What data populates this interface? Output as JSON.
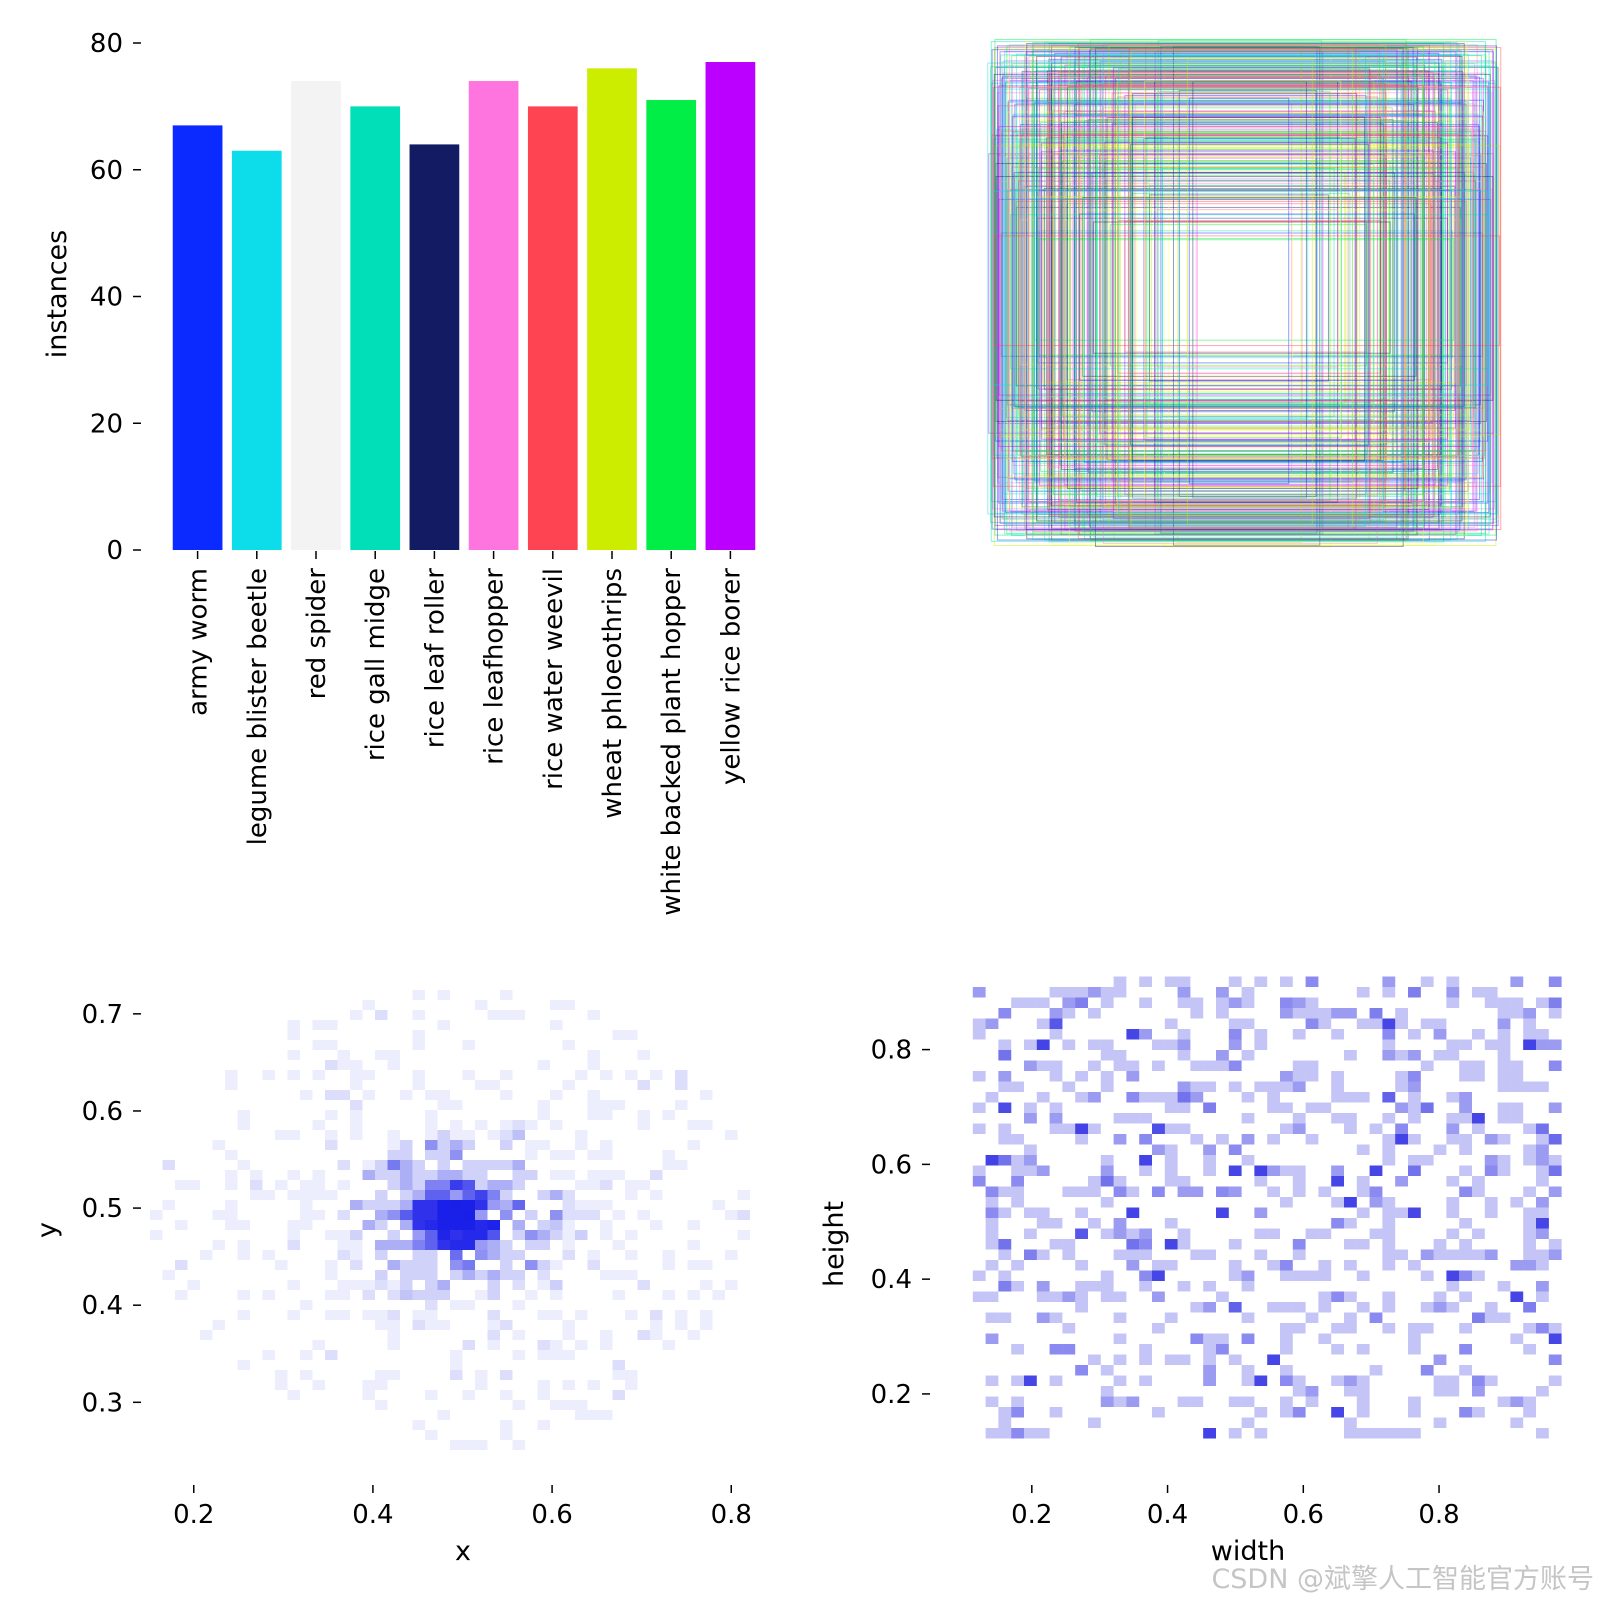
{
  "watermark": "CSDN @斌擎人工智能官方账号",
  "chart_data": [
    {
      "type": "bar",
      "ylabel": "instances",
      "ylim": [
        0,
        80
      ],
      "yticks": [
        0,
        20,
        40,
        60,
        80
      ],
      "categories": [
        "army worm",
        "legume blister beetle",
        "red spider",
        "rice gall midge",
        "rice leaf roller",
        "rice leafhopper",
        "rice water weevil",
        "wheat phloeothrips",
        "white backed plant hopper",
        "yellow rice borer"
      ],
      "values": [
        67,
        63,
        74,
        70,
        64,
        74,
        70,
        76,
        71,
        77
      ],
      "colors": [
        "#0b2aff",
        "#0ddcea",
        "#f3f3f3",
        "#00dfb7",
        "#131c63",
        "#ff75df",
        "#fe4452",
        "#ccec00",
        "#00ee46",
        "#bb00ff"
      ]
    },
    {
      "type": "boxes",
      "description_axes": "none",
      "grid": false
    },
    {
      "type": "heatmap",
      "xlabel": "x",
      "ylabel": "y",
      "xticks": [
        0.2,
        0.4,
        0.6,
        0.8
      ],
      "yticks": [
        0.3,
        0.4,
        0.5,
        0.6,
        0.7
      ],
      "xlim": [
        0.14,
        0.86
      ],
      "ylim": [
        0.22,
        0.74
      ],
      "center": [
        0.49,
        0.49
      ]
    },
    {
      "type": "heatmap",
      "xlabel": "width",
      "ylabel": "height",
      "xticks": [
        0.2,
        0.4,
        0.6,
        0.8
      ],
      "yticks": [
        0.2,
        0.4,
        0.6,
        0.8
      ],
      "xlim": [
        0.05,
        0.99
      ],
      "ylim": [
        0.05,
        0.93
      ]
    }
  ]
}
